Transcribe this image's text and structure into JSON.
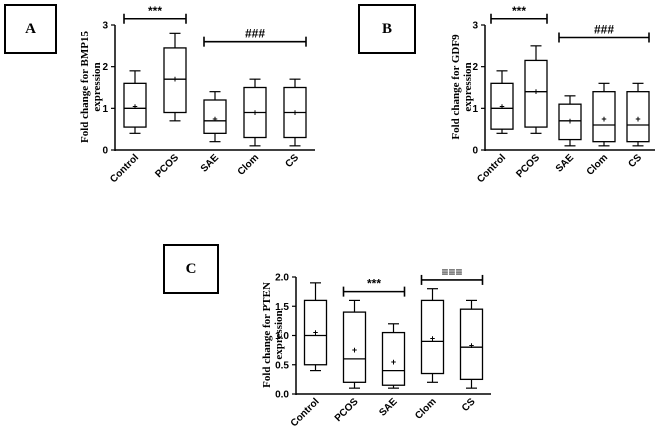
{
  "panels": [
    {
      "label": "A",
      "type": "box",
      "ylabel": "Fold change for BMP15 expression",
      "ylim": [
        0,
        3
      ],
      "yticks": [
        "0",
        "1",
        "2",
        "3"
      ],
      "categories": [
        "Control",
        "PCOS",
        "SAE",
        "Clom",
        "CS"
      ],
      "boxes": [
        {
          "min": 0.4,
          "q1": 0.55,
          "median": 1.0,
          "q3": 1.6,
          "max": 1.9,
          "mean": 1.05
        },
        {
          "min": 0.7,
          "q1": 0.9,
          "median": 1.7,
          "q3": 2.45,
          "max": 2.8,
          "mean": 1.7
        },
        {
          "min": 0.2,
          "q1": 0.4,
          "median": 0.7,
          "q3": 1.2,
          "max": 1.4,
          "mean": 0.75
        },
        {
          "min": 0.1,
          "q1": 0.3,
          "median": 0.9,
          "q3": 1.5,
          "max": 1.7,
          "mean": 0.9
        },
        {
          "min": 0.1,
          "q1": 0.3,
          "median": 0.9,
          "q3": 1.5,
          "max": 1.7,
          "mean": 0.9
        }
      ],
      "significance": [
        {
          "from": 0,
          "to": 1,
          "y": 3.15,
          "label": "***"
        },
        {
          "from": 2,
          "to": 4,
          "y": 2.6,
          "label": "###"
        }
      ]
    },
    {
      "label": "B",
      "type": "box",
      "ylabel": "Fold change for GDF9 expression",
      "ylim": [
        0,
        3
      ],
      "yticks": [
        "0",
        "1",
        "2",
        "3"
      ],
      "categories": [
        "Control",
        "PCOS",
        "SAE",
        "Clom",
        "CS"
      ],
      "boxes": [
        {
          "min": 0.4,
          "q1": 0.5,
          "median": 1.0,
          "q3": 1.6,
          "max": 1.9,
          "mean": 1.05
        },
        {
          "min": 0.4,
          "q1": 0.55,
          "median": 1.4,
          "q3": 2.15,
          "max": 2.5,
          "mean": 1.4
        },
        {
          "min": 0.1,
          "q1": 0.25,
          "median": 0.7,
          "q3": 1.1,
          "max": 1.3,
          "mean": 0.7
        },
        {
          "min": 0.1,
          "q1": 0.2,
          "median": 0.6,
          "q3": 1.4,
          "max": 1.6,
          "mean": 0.75
        },
        {
          "min": 0.1,
          "q1": 0.2,
          "median": 0.6,
          "q3": 1.4,
          "max": 1.6,
          "mean": 0.75
        }
      ],
      "significance": [
        {
          "from": 0,
          "to": 1,
          "y": 3.15,
          "label": "***"
        },
        {
          "from": 2,
          "to": 4,
          "y": 2.7,
          "label": "###"
        }
      ]
    },
    {
      "label": "C",
      "type": "box",
      "ylabel": "Fold change for PTEN expression",
      "ylim": [
        0,
        2.0
      ],
      "yticks": [
        "0.0",
        "0.5",
        "1.0",
        "1.5",
        "2.0"
      ],
      "categories": [
        "Control",
        "PCOS",
        "SAE",
        "Clom",
        "CS"
      ],
      "boxes": [
        {
          "min": 0.4,
          "q1": 0.5,
          "median": 1.0,
          "q3": 1.6,
          "max": 1.9,
          "mean": 1.05
        },
        {
          "min": 0.1,
          "q1": 0.2,
          "median": 0.6,
          "q3": 1.4,
          "max": 1.6,
          "mean": 0.75
        },
        {
          "min": 0.1,
          "q1": 0.15,
          "median": 0.4,
          "q3": 1.05,
          "max": 1.2,
          "mean": 0.55
        },
        {
          "min": 0.2,
          "q1": 0.35,
          "median": 0.9,
          "q3": 1.6,
          "max": 1.8,
          "mean": 0.95
        },
        {
          "min": 0.1,
          "q1": 0.25,
          "median": 0.8,
          "q3": 1.45,
          "max": 1.6,
          "mean": 0.83
        }
      ],
      "significance": [
        {
          "from": 1,
          "to": 2,
          "y": 1.75,
          "label": "***"
        },
        {
          "from": 3,
          "to": 4,
          "y": 1.95,
          "label": "≡≡≡"
        }
      ]
    }
  ]
}
